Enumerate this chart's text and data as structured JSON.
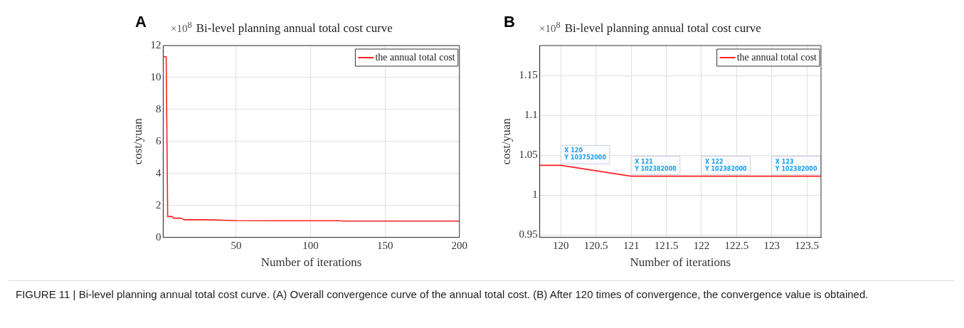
{
  "chart_data": [
    {
      "type": "line",
      "title": "Bi-level planning annual total cost curve",
      "xlabel": "Number of iterations",
      "ylabel": "cost/yuan",
      "x": [
        1,
        3,
        4,
        7,
        8,
        13,
        15,
        30,
        50,
        80,
        120,
        121,
        200
      ],
      "series": [
        {
          "name": "the annual total cost",
          "color": "#ff2020",
          "values": [
            11.3,
            11.3,
            1.3,
            1.3,
            1.2,
            1.2,
            1.1,
            1.1,
            1.05,
            1.04,
            1.04,
            1.02,
            1.02
          ]
        }
      ],
      "xlim": [
        1,
        200
      ],
      "xticks": [
        50,
        100,
        150,
        200
      ],
      "ylim": [
        0,
        12
      ],
      "yticks": [
        0,
        2,
        4,
        6,
        8,
        10,
        12
      ],
      "grid": true,
      "legend": "top right",
      "marker": "none",
      "line_style": "solid",
      "annotations": [
        "A",
        "×10$^{8}$",
        "FIGURE 11 | Bi-level planning annual total cost curve. (A) Overall convergence curve of the annual total cost. (B) After 120 times of convergence, the convergence value is obtained."
      ]
    },
    {
      "type": "line",
      "title": "Bi-level planning annual total cost curve",
      "xlabel": "Number of iterations",
      "ylabel": "cost/yuan",
      "x": [
        119.7,
        120,
        121,
        122,
        123,
        123.7
      ],
      "series": [
        {
          "name": "the annual total cost",
          "color": "#ff2020",
          "values": [
            1.03752,
            1.03752,
            1.02382,
            1.02382,
            1.02382,
            1.02382
          ]
        }
      ],
      "xlim": [
        119.7,
        123.7
      ],
      "xticks": [
        120,
        120.5,
        121,
        121.5,
        122,
        122.5,
        123,
        123.5
      ],
      "ylim": [
        0.947,
        1.188
      ],
      "yticks": [
        0.95,
        1,
        1.05,
        1.1,
        1.15
      ],
      "grid": true,
      "legend": "top right",
      "marker": "none",
      "line_style": "solid",
      "annotations": [
        "B",
        "×10$^{8}$",
        {
          "text": "X 120\nY 103752000",
          "x": 120,
          "y": 1.03752
        },
        {
          "text": "X 121\nY 102382000",
          "x": 121,
          "y": 1.02382
        },
        {
          "text": "X 122\nY 102382000",
          "x": 122,
          "y": 1.02382
        },
        {
          "text": "X 123\nY 102382000",
          "x": 123,
          "y": 1.02382
        }
      ]
    }
  ]
}
